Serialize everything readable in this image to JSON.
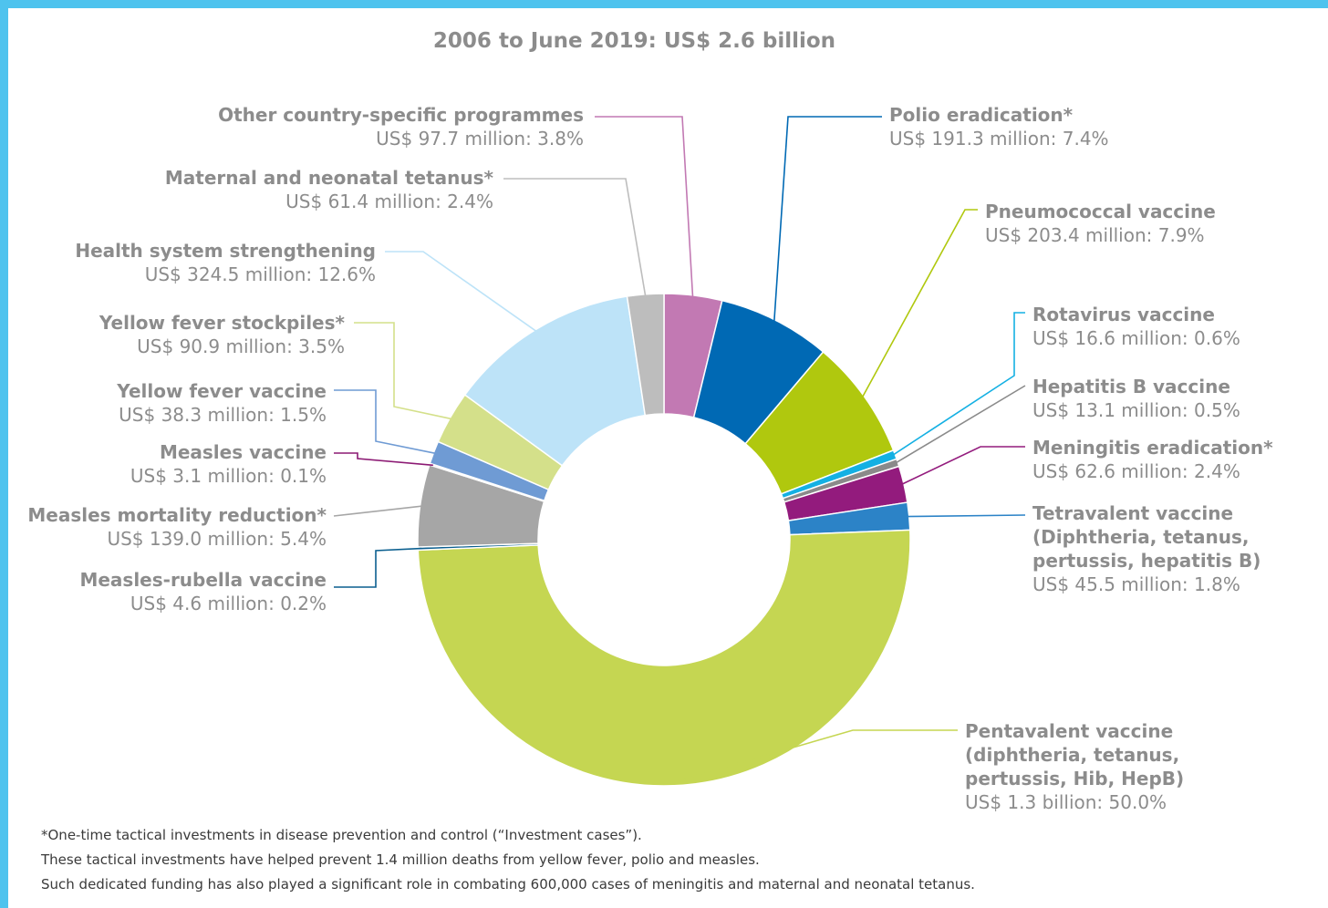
{
  "chart_data": {
    "type": "pie",
    "title": "2006 to June 2019: US$ 2.6 billion",
    "slices": [
      {
        "name": "Other country-specific programmes",
        "value_label": "US$ 97.7 million: 3.8%",
        "value": 3.8,
        "color": "#c279b3"
      },
      {
        "name": "Polio eradication*",
        "value_label": "US$ 191.3 million: 7.4%",
        "value": 7.4,
        "color": "#0069b4"
      },
      {
        "name": "Pneumococcal vaccine",
        "value_label": "US$ 203.4 million: 7.9%",
        "value": 7.9,
        "color": "#b0c80e"
      },
      {
        "name": "Rotavirus vaccine",
        "value_label": "US$ 16.6 million: 0.6%",
        "value": 0.6,
        "color": "#14b0e3"
      },
      {
        "name": "Hepatitis B vaccine",
        "value_label": "US$ 13.1 million: 0.5%",
        "value": 0.5,
        "color": "#8a8a8a"
      },
      {
        "name": "Meningitis eradication*",
        "value_label": "US$ 62.6 million: 2.4%",
        "value": 2.4,
        "color": "#931b7d"
      },
      {
        "name": "Tetravalent vaccine\n(Diphtheria, tetanus,\npertussis, hepatitis B)",
        "value_label": "US$ 45.5 million: 1.8%",
        "value": 1.8,
        "color": "#2c83c7"
      },
      {
        "name": "Pentavalent vaccine\n(diphtheria, tetanus,\npertussis, Hib, HepB)",
        "value_label": "US$ 1.3 billion: 50.0%",
        "value": 50.0,
        "color": "#c5d652"
      },
      {
        "name": "Measles-rubella vaccine",
        "value_label": "US$ 4.6 million: 0.2%",
        "value": 0.2,
        "color": "#0b5f8f"
      },
      {
        "name": "Measles mortality reduction*",
        "value_label": "US$ 139.0 million: 5.4%",
        "value": 5.4,
        "color": "#a6a6a6"
      },
      {
        "name": "Measles vaccine",
        "value_label": "US$ 3.1 million: 0.1%",
        "value": 0.1,
        "color": "#8c1a74"
      },
      {
        "name": "Yellow fever vaccine",
        "value_label": "US$ 38.3 million: 1.5%",
        "value": 1.5,
        "color": "#6f9bd4"
      },
      {
        "name": "Yellow fever stockpiles*",
        "value_label": "US$ 90.9 million: 3.5%",
        "value": 3.5,
        "color": "#d4e08a"
      },
      {
        "name": "Health system strengthening",
        "value_label": "US$ 324.5 million: 12.6%",
        "value": 12.6,
        "color": "#bde3f8"
      },
      {
        "name": "Maternal and neonatal tetanus*",
        "value_label": "US$ 61.4 million: 2.4%",
        "value": 2.4,
        "color": "#bdbdbd"
      }
    ]
  },
  "footnotes": [
    "*One-time tactical investments in disease prevention and control (“Investment cases”).",
    "These tactical investments have helped prevent 1.4 million deaths from yellow fever, polio and measles.",
    "Such dedicated funding has also played a significant role in combating 600,000 cases of meningitis and maternal and neonatal tetanus."
  ]
}
